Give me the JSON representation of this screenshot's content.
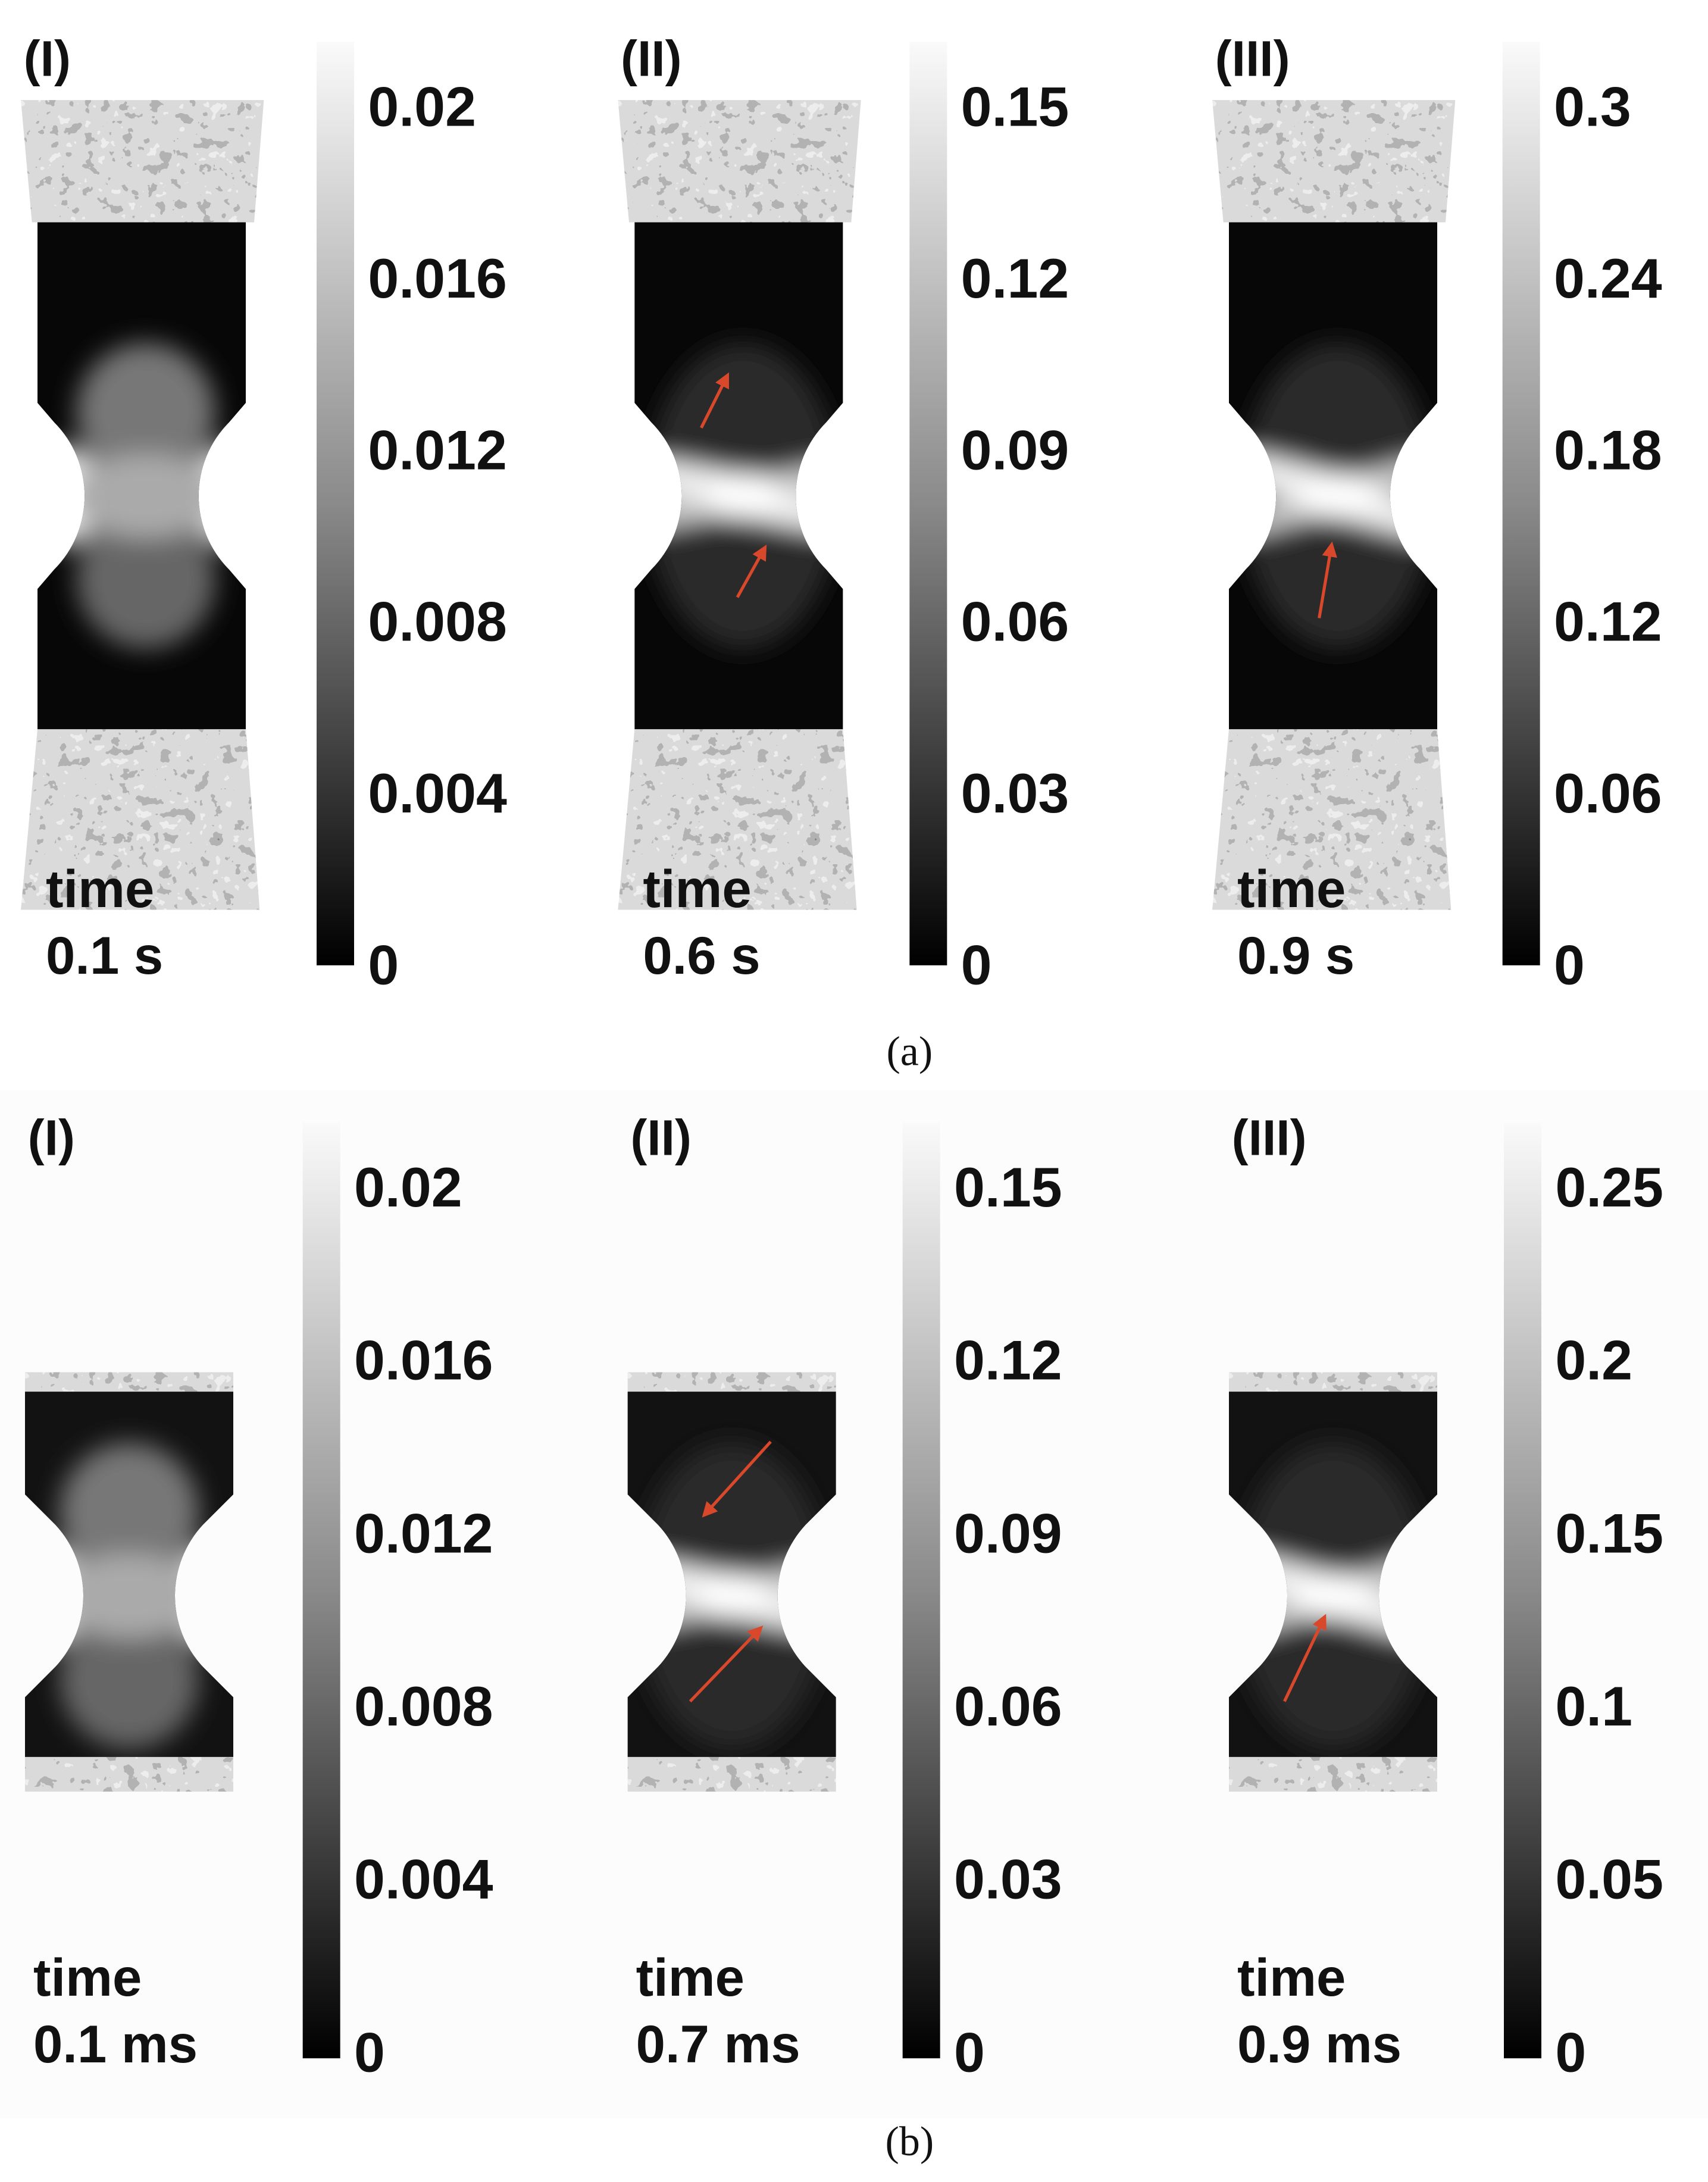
{
  "figure": {
    "rows": [
      {
        "caption": "(a)",
        "panels": [
          {
            "label": "(I)",
            "colorbar_ticks": [
              "0.02",
              "0.016",
              "0.012",
              "0.008",
              "0.004",
              "0"
            ],
            "time_label": "time",
            "time_value": "0.1 s"
          },
          {
            "label": "(II)",
            "colorbar_ticks": [
              "0.15",
              "0.12",
              "0.09",
              "0.06",
              "0.03",
              "0"
            ],
            "time_label": "time",
            "time_value": "0.6 s"
          },
          {
            "label": "(III)",
            "colorbar_ticks": [
              "0.3",
              "0.24",
              "0.18",
              "0.12",
              "0.06",
              "0"
            ],
            "time_label": "time",
            "time_value": "0.9 s"
          }
        ]
      },
      {
        "caption": "(b)",
        "panels": [
          {
            "label": "(I)",
            "colorbar_ticks": [
              "0.02",
              "0.016",
              "0.012",
              "0.008",
              "0.004",
              "0"
            ],
            "time_label": "time",
            "time_value": "0.1 ms"
          },
          {
            "label": "(II)",
            "colorbar_ticks": [
              "0.15",
              "0.12",
              "0.09",
              "0.06",
              "0.03",
              "0"
            ],
            "time_label": "time",
            "time_value": "0.7 ms"
          },
          {
            "label": "(III)",
            "colorbar_ticks": [
              "0.25",
              "0.2",
              "0.15",
              "0.1",
              "0.05",
              "0"
            ],
            "time_label": "time",
            "time_value": "0.9 ms"
          }
        ]
      }
    ]
  }
}
